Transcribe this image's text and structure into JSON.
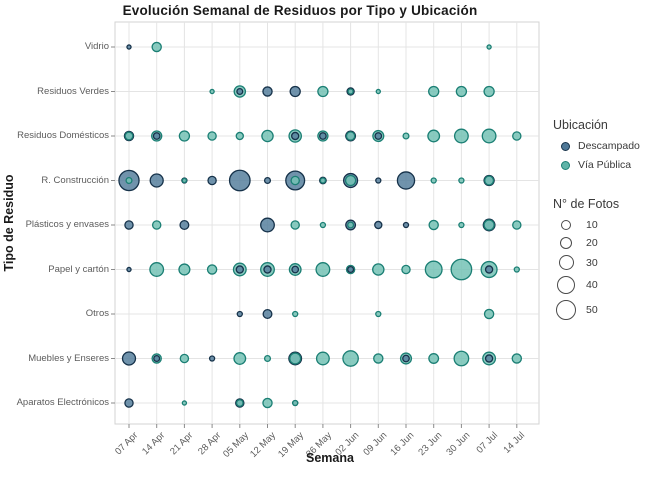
{
  "title": "Evolución Semanal de Residuos por Tipo y Ubicación",
  "axes": {
    "x_label": "Semana",
    "y_label": "Tipo de Residuo"
  },
  "legend": {
    "location_title": "Ubicación",
    "items": [
      {
        "label": "Descampado"
      },
      {
        "label": "Vía Pública"
      }
    ],
    "size_title": "N° de Fotos",
    "size_labels": [
      "10",
      "20",
      "30",
      "40",
      "50"
    ]
  },
  "chart_data": {
    "type": "scatter",
    "subtype": "bubble",
    "title": "Evolución Semanal de Residuos por Tipo y Ubicación",
    "xlabel": "Semana",
    "ylabel": "Tipo de Residuo",
    "grid": true,
    "legend_position": "right",
    "x_categories": [
      "07 Apr",
      "14 Apr",
      "21 Apr",
      "28 Apr",
      "05 May",
      "12 May",
      "19 May",
      "26 May",
      "02 Jun",
      "09 Jun",
      "16 Jun",
      "23 Jun",
      "30 Jun",
      "07 Jul",
      "14 Jul"
    ],
    "y_categories": [
      "Vidrio",
      "Residuos Verdes",
      "Residuos Domésticos",
      "R. Construcción",
      "Plásticos y envases",
      "Papel y cartón",
      "Otros",
      "Muebles y Enseres",
      "Aparatos Electrónicos"
    ],
    "size_scale": {
      "label": "N° de Fotos",
      "values": [
        10,
        20,
        30,
        40,
        50
      ]
    },
    "point_format": "[week_index, type_index, n_fotos]",
    "series": [
      {
        "name": "Descampado",
        "fill": "#57809e",
        "stroke": "#16324a",
        "points": [
          [
            0,
            0,
            2
          ],
          [
            4,
            1,
            4
          ],
          [
            5,
            1,
            10
          ],
          [
            6,
            1,
            12
          ],
          [
            8,
            1,
            6
          ],
          [
            0,
            2,
            10
          ],
          [
            1,
            2,
            5
          ],
          [
            6,
            2,
            6
          ],
          [
            7,
            2,
            5
          ],
          [
            8,
            2,
            11
          ],
          [
            9,
            2,
            5
          ],
          [
            0,
            3,
            48
          ],
          [
            1,
            3,
            20
          ],
          [
            2,
            3,
            3
          ],
          [
            3,
            3,
            8
          ],
          [
            4,
            3,
            50
          ],
          [
            5,
            3,
            4
          ],
          [
            6,
            3,
            42
          ],
          [
            7,
            3,
            5
          ],
          [
            8,
            3,
            23
          ],
          [
            9,
            3,
            3
          ],
          [
            10,
            3,
            35
          ],
          [
            13,
            3,
            12
          ],
          [
            0,
            4,
            8
          ],
          [
            2,
            4,
            9
          ],
          [
            5,
            4,
            22
          ],
          [
            8,
            4,
            11
          ],
          [
            9,
            4,
            6
          ],
          [
            10,
            4,
            3
          ],
          [
            13,
            4,
            16
          ],
          [
            0,
            5,
            2
          ],
          [
            4,
            5,
            6
          ],
          [
            5,
            5,
            6
          ],
          [
            6,
            5,
            5
          ],
          [
            8,
            5,
            4
          ],
          [
            13,
            5,
            6
          ],
          [
            4,
            6,
            3
          ],
          [
            5,
            6,
            9
          ],
          [
            0,
            7,
            20
          ],
          [
            1,
            7,
            4
          ],
          [
            3,
            7,
            3
          ],
          [
            6,
            7,
            19
          ],
          [
            10,
            7,
            5
          ],
          [
            13,
            7,
            6
          ],
          [
            0,
            8,
            8
          ],
          [
            4,
            8,
            8
          ],
          [
            6,
            8,
            3
          ]
        ]
      },
      {
        "name": "Vía Pública",
        "fill": "#74c2b5",
        "stroke": "#1b7f74",
        "points": [
          [
            1,
            0,
            10
          ],
          [
            13,
            0,
            2
          ],
          [
            3,
            1,
            2
          ],
          [
            4,
            1,
            15
          ],
          [
            7,
            1,
            12
          ],
          [
            8,
            1,
            3
          ],
          [
            9,
            1,
            2
          ],
          [
            11,
            1,
            12
          ],
          [
            12,
            1,
            12
          ],
          [
            13,
            1,
            12
          ],
          [
            0,
            2,
            7
          ],
          [
            1,
            2,
            12
          ],
          [
            2,
            2,
            12
          ],
          [
            3,
            2,
            8
          ],
          [
            4,
            2,
            6
          ],
          [
            5,
            2,
            15
          ],
          [
            6,
            2,
            18
          ],
          [
            7,
            2,
            12
          ],
          [
            8,
            2,
            8
          ],
          [
            9,
            2,
            14
          ],
          [
            10,
            2,
            4
          ],
          [
            11,
            2,
            16
          ],
          [
            12,
            2,
            22
          ],
          [
            13,
            2,
            22
          ],
          [
            14,
            2,
            8
          ],
          [
            0,
            3,
            4
          ],
          [
            2,
            3,
            2
          ],
          [
            6,
            3,
            8
          ],
          [
            7,
            3,
            3
          ],
          [
            8,
            3,
            12
          ],
          [
            11,
            3,
            3
          ],
          [
            12,
            3,
            3
          ],
          [
            13,
            3,
            9
          ],
          [
            1,
            4,
            8
          ],
          [
            6,
            4,
            8
          ],
          [
            7,
            4,
            3
          ],
          [
            8,
            4,
            4
          ],
          [
            11,
            4,
            10
          ],
          [
            12,
            4,
            3
          ],
          [
            13,
            4,
            12
          ],
          [
            14,
            4,
            8
          ],
          [
            1,
            5,
            22
          ],
          [
            2,
            5,
            14
          ],
          [
            3,
            5,
            10
          ],
          [
            4,
            5,
            19
          ],
          [
            5,
            5,
            22
          ],
          [
            6,
            5,
            16
          ],
          [
            7,
            5,
            22
          ],
          [
            8,
            5,
            8
          ],
          [
            9,
            5,
            15
          ],
          [
            10,
            5,
            8
          ],
          [
            11,
            5,
            33
          ],
          [
            12,
            5,
            50
          ],
          [
            13,
            5,
            30
          ],
          [
            14,
            5,
            3
          ],
          [
            6,
            6,
            3
          ],
          [
            9,
            6,
            3
          ],
          [
            13,
            6,
            10
          ],
          [
            1,
            7,
            10
          ],
          [
            2,
            7,
            8
          ],
          [
            4,
            7,
            16
          ],
          [
            5,
            7,
            4
          ],
          [
            6,
            7,
            14
          ],
          [
            7,
            7,
            19
          ],
          [
            8,
            7,
            28
          ],
          [
            9,
            7,
            10
          ],
          [
            10,
            7,
            14
          ],
          [
            11,
            7,
            11
          ],
          [
            12,
            7,
            25
          ],
          [
            13,
            7,
            19
          ],
          [
            14,
            7,
            10
          ],
          [
            2,
            8,
            2
          ],
          [
            4,
            8,
            5
          ],
          [
            5,
            8,
            10
          ],
          [
            6,
            8,
            3
          ]
        ]
      }
    ]
  }
}
